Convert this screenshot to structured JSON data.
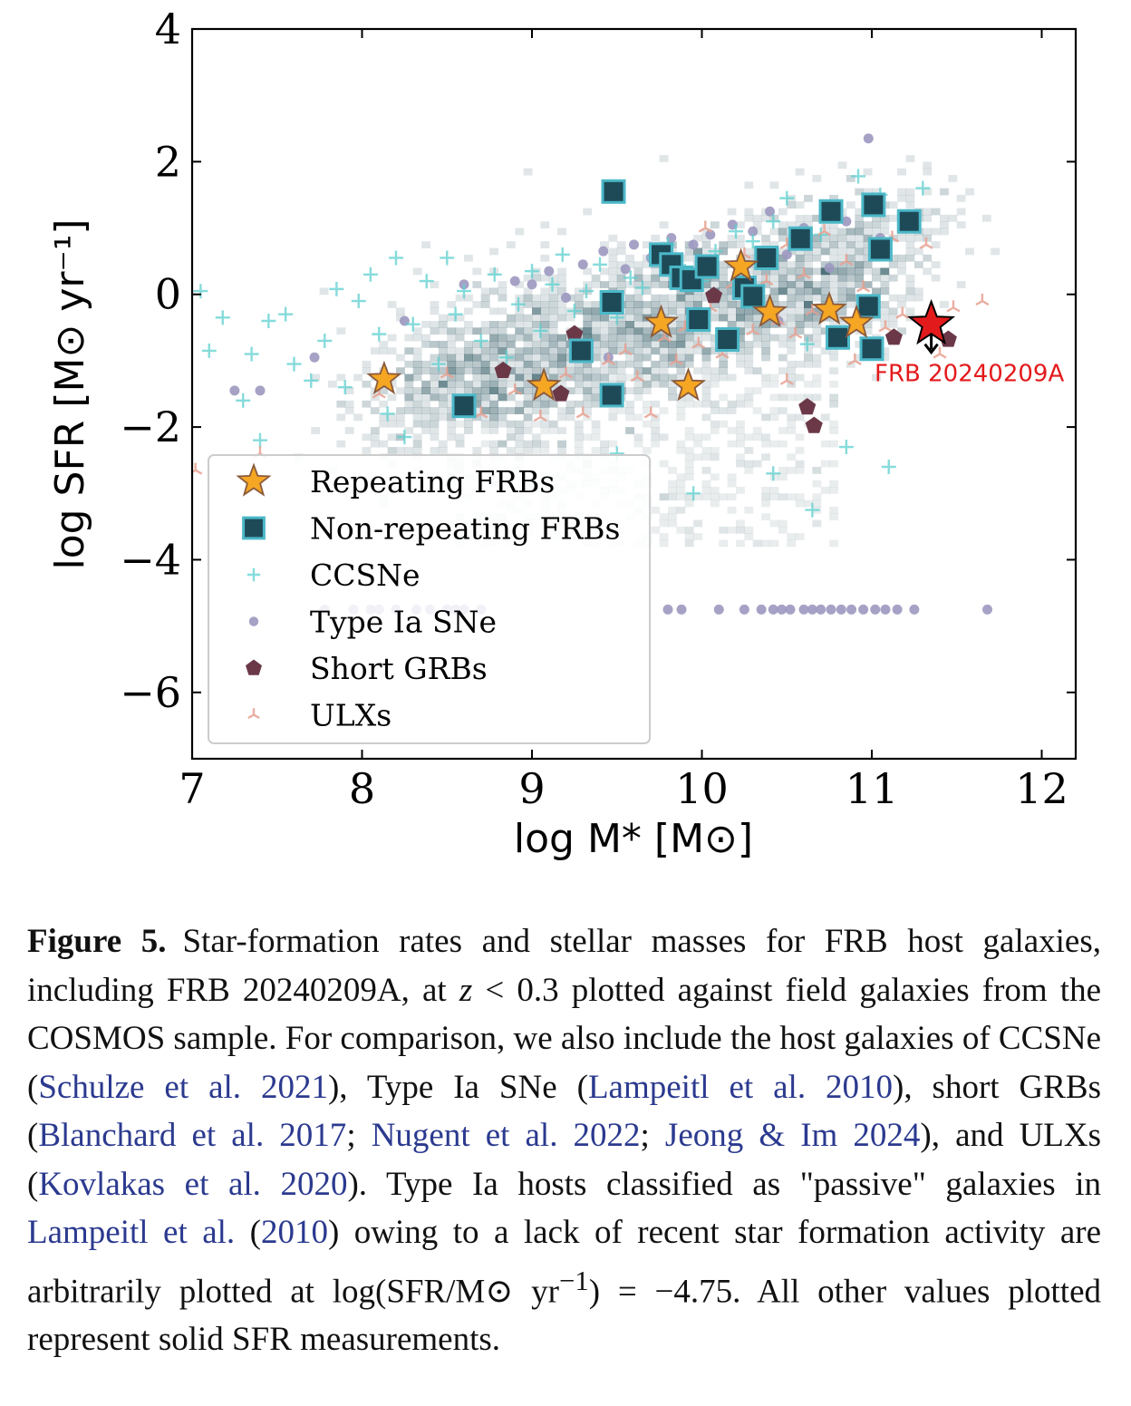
{
  "chart_data": {
    "type": "scatter",
    "xlabel": "log M* [M⊙]",
    "ylabel": "log SFR [M⊙ yr⁻¹]",
    "xlim": [
      7,
      12.2
    ],
    "ylim": [
      -7,
      4
    ],
    "xticks": [
      7,
      8,
      9,
      10,
      11,
      12
    ],
    "yticks": [
      4,
      2,
      0,
      -2,
      -4,
      -6
    ],
    "xtick_labels": [
      "7",
      "8",
      "9",
      "10",
      "11",
      "12"
    ],
    "ytick_labels": [
      "4",
      "2",
      "0",
      "−2",
      "−4",
      "−6"
    ],
    "legend_placement": "lower-left",
    "annotation": {
      "text": "FRB 20240209A",
      "x": 11.35,
      "y": -0.45,
      "upper_limit": true,
      "color": "#e31a1c"
    },
    "series": [
      {
        "name": "Repeating FRBs",
        "marker": "star",
        "color": "#f5a623",
        "points": [
          [
            8.13,
            -1.28
          ],
          [
            9.07,
            -1.38
          ],
          [
            9.76,
            -0.43
          ],
          [
            9.92,
            -1.38
          ],
          [
            10.23,
            0.42
          ],
          [
            10.4,
            -0.27
          ],
          [
            10.75,
            -0.23
          ],
          [
            10.91,
            -0.43
          ]
        ]
      },
      {
        "name": "Non-repeating FRBs",
        "marker": "square",
        "color": "#1e4a57",
        "edge": "#4bb8c8",
        "points": [
          [
            8.6,
            -1.68
          ],
          [
            9.29,
            -0.85
          ],
          [
            9.47,
            -0.12
          ],
          [
            9.47,
            -1.52
          ],
          [
            9.48,
            1.55
          ],
          [
            9.76,
            0.6
          ],
          [
            9.82,
            0.45
          ],
          [
            9.88,
            0.25
          ],
          [
            9.94,
            0.22
          ],
          [
            9.98,
            -0.38
          ],
          [
            10.03,
            0.42
          ],
          [
            10.15,
            -0.68
          ],
          [
            10.25,
            0.1
          ],
          [
            10.3,
            -0.03
          ],
          [
            10.38,
            0.55
          ],
          [
            10.58,
            0.84
          ],
          [
            10.76,
            1.25
          ],
          [
            10.8,
            -0.65
          ],
          [
            10.98,
            -0.18
          ],
          [
            11.0,
            -0.82
          ],
          [
            11.01,
            1.35
          ],
          [
            11.05,
            0.68
          ],
          [
            11.22,
            1.1
          ]
        ]
      },
      {
        "name": "CCSNe",
        "marker": "plus",
        "color": "#5ecfcf",
        "points": [
          [
            7.05,
            0.05
          ],
          [
            7.1,
            -0.85
          ],
          [
            7.18,
            -0.35
          ],
          [
            7.3,
            -1.6
          ],
          [
            7.35,
            -0.9
          ],
          [
            7.45,
            -0.4
          ],
          [
            7.55,
            -0.3
          ],
          [
            7.6,
            -1.05
          ],
          [
            7.7,
            -1.3
          ],
          [
            7.78,
            -0.7
          ],
          [
            7.85,
            0.08
          ],
          [
            7.9,
            -1.4
          ],
          [
            7.98,
            -0.1
          ],
          [
            8.05,
            0.3
          ],
          [
            8.1,
            -0.6
          ],
          [
            8.15,
            -1.8
          ],
          [
            8.2,
            0.55
          ],
          [
            8.3,
            -0.45
          ],
          [
            8.38,
            0.2
          ],
          [
            8.45,
            -1.05
          ],
          [
            8.5,
            0.55
          ],
          [
            8.55,
            -0.3
          ],
          [
            8.6,
            0.05
          ],
          [
            8.7,
            -0.7
          ],
          [
            8.78,
            0.3
          ],
          [
            8.85,
            -0.95
          ],
          [
            8.92,
            -0.15
          ],
          [
            9.0,
            0.35
          ],
          [
            9.05,
            -0.55
          ],
          [
            9.12,
            0.15
          ],
          [
            9.18,
            0.6
          ],
          [
            9.25,
            -0.25
          ],
          [
            9.32,
            0.05
          ],
          [
            9.4,
            0.45
          ],
          [
            9.5,
            -0.35
          ],
          [
            9.58,
            0.25
          ],
          [
            9.65,
            0.1
          ],
          [
            9.72,
            0.55
          ],
          [
            9.8,
            0.75
          ],
          [
            9.9,
            0.35
          ],
          [
            10.0,
            0.2
          ],
          [
            10.08,
            0.65
          ],
          [
            10.2,
            0.95
          ],
          [
            10.3,
            0.8
          ],
          [
            10.42,
            1.1
          ],
          [
            10.5,
            1.45
          ],
          [
            10.62,
            -0.75
          ],
          [
            10.7,
            0.9
          ],
          [
            10.85,
            -2.3
          ],
          [
            10.92,
            1.78
          ],
          [
            11.05,
            1.5
          ],
          [
            11.1,
            -2.6
          ],
          [
            11.3,
            1.6
          ],
          [
            10.42,
            -2.7
          ],
          [
            10.65,
            -3.25
          ],
          [
            9.95,
            -3.0
          ],
          [
            9.5,
            -2.4
          ],
          [
            8.25,
            -2.15
          ],
          [
            7.4,
            -2.2
          ]
        ]
      },
      {
        "name": "Type Ia SNe",
        "marker": "circle",
        "color": "#9c98c0",
        "points": [
          [
            7.25,
            -1.45
          ],
          [
            7.4,
            -1.45
          ],
          [
            7.72,
            -0.95
          ],
          [
            8.25,
            -0.4
          ],
          [
            8.6,
            0.15
          ],
          [
            8.9,
            0.2
          ],
          [
            9.0,
            0.15
          ],
          [
            9.1,
            0.35
          ],
          [
            9.2,
            -0.05
          ],
          [
            9.3,
            0.45
          ],
          [
            9.42,
            0.65
          ],
          [
            9.55,
            0.38
          ],
          [
            9.6,
            0.75
          ],
          [
            9.7,
            0.55
          ],
          [
            9.82,
            0.85
          ],
          [
            9.95,
            0.75
          ],
          [
            10.05,
            0.9
          ],
          [
            10.18,
            1.05
          ],
          [
            10.3,
            0.95
          ],
          [
            10.4,
            1.25
          ],
          [
            10.5,
            0.6
          ],
          [
            10.6,
            1.0
          ],
          [
            10.75,
            0.4
          ],
          [
            10.85,
            1.1
          ],
          [
            10.98,
            2.35
          ],
          [
            11.05,
            0.85
          ],
          [
            11.2,
            1.05
          ],
          [
            9.45,
            -0.95
          ],
          [
            10.45,
            -0.4
          ],
          [
            7.78,
            -4.75
          ],
          [
            7.95,
            -4.75
          ],
          [
            8.05,
            -4.75
          ],
          [
            8.1,
            -4.75
          ],
          [
            8.2,
            -4.75
          ],
          [
            8.32,
            -4.75
          ],
          [
            8.4,
            -4.75
          ],
          [
            8.5,
            -4.75
          ],
          [
            8.55,
            -4.75
          ],
          [
            8.6,
            -4.75
          ],
          [
            8.7,
            -4.75
          ],
          [
            9.8,
            -4.75
          ],
          [
            9.88,
            -4.75
          ],
          [
            10.1,
            -4.75
          ],
          [
            10.25,
            -4.75
          ],
          [
            10.35,
            -4.75
          ],
          [
            10.42,
            -4.75
          ],
          [
            10.47,
            -4.75
          ],
          [
            10.52,
            -4.75
          ],
          [
            10.6,
            -4.75
          ],
          [
            10.65,
            -4.75
          ],
          [
            10.7,
            -4.75
          ],
          [
            10.76,
            -4.75
          ],
          [
            10.82,
            -4.75
          ],
          [
            10.88,
            -4.75
          ],
          [
            10.95,
            -4.75
          ],
          [
            11.02,
            -4.75
          ],
          [
            11.08,
            -4.75
          ],
          [
            11.15,
            -4.75
          ],
          [
            11.25,
            -4.75
          ],
          [
            11.68,
            -4.75
          ]
        ]
      },
      {
        "name": "Short GRBs",
        "marker": "pentagon",
        "color": "#6b3848",
        "points": [
          [
            8.83,
            -1.15
          ],
          [
            9.17,
            -1.5
          ],
          [
            10.07,
            -0.02
          ],
          [
            10.62,
            -1.7
          ],
          [
            10.66,
            -1.98
          ],
          [
            11.13,
            -0.65
          ],
          [
            11.45,
            -0.68
          ],
          [
            9.25,
            -0.6
          ]
        ]
      },
      {
        "name": "ULXs",
        "marker": "tri",
        "color": "#e8a090",
        "points": [
          [
            7.02,
            -2.65
          ],
          [
            7.4,
            -2.4
          ],
          [
            8.1,
            -1.5
          ],
          [
            8.5,
            -1.2
          ],
          [
            8.7,
            -1.8
          ],
          [
            8.9,
            -1.45
          ],
          [
            9.05,
            -1.85
          ],
          [
            9.2,
            -1.2
          ],
          [
            9.3,
            -1.8
          ],
          [
            9.45,
            -1.0
          ],
          [
            9.55,
            -0.85
          ],
          [
            9.62,
            -1.25
          ],
          [
            9.7,
            -1.8
          ],
          [
            9.78,
            -0.65
          ],
          [
            9.85,
            -1.0
          ],
          [
            9.9,
            -0.5
          ],
          [
            9.98,
            -0.75
          ],
          [
            10.05,
            -0.2
          ],
          [
            10.12,
            -0.9
          ],
          [
            10.18,
            0.15
          ],
          [
            10.25,
            0.6
          ],
          [
            10.3,
            -0.55
          ],
          [
            10.38,
            0.2
          ],
          [
            10.45,
            -0.4
          ],
          [
            10.5,
            0.75
          ],
          [
            10.55,
            -0.6
          ],
          [
            10.6,
            0.3
          ],
          [
            10.65,
            -0.25
          ],
          [
            10.72,
            0.95
          ],
          [
            10.78,
            -0.6
          ],
          [
            10.85,
            0.5
          ],
          [
            10.9,
            -1.0
          ],
          [
            10.95,
            0.1
          ],
          [
            11.02,
            1.3
          ],
          [
            11.08,
            -0.5
          ],
          [
            11.12,
            0.85
          ],
          [
            11.18,
            -0.3
          ],
          [
            11.25,
            1.0
          ],
          [
            11.32,
            0.75
          ],
          [
            11.4,
            -0.9
          ],
          [
            11.48,
            -0.2
          ],
          [
            11.65,
            -0.1
          ],
          [
            10.02,
            1.0
          ],
          [
            10.5,
            -1.3
          ]
        ]
      }
    ]
  },
  "legend": {
    "items": [
      {
        "label": "Repeating FRBs",
        "marker": "star"
      },
      {
        "label": "Non-repeating FRBs",
        "marker": "square"
      },
      {
        "label": "CCSNe",
        "marker": "plus"
      },
      {
        "label": "Type Ia SNe",
        "marker": "circle"
      },
      {
        "label": "Short GRBs",
        "marker": "pentagon"
      },
      {
        "label": "ULXs",
        "marker": "tri"
      }
    ]
  },
  "caption": {
    "label": "Figure 5.",
    "t1": "Star-formation rates and stellar masses for FRB host galaxies, including FRB 20240209A, at ",
    "z": "z",
    "t2": " < 0.3 plotted against field galaxies from the COSMOS sample. For comparison, we also include the host galaxies of CCSNe (",
    "c1": "Schulze et al. 2021",
    "t3": "), Type Ia SNe (",
    "c2": "Lampeitl et al. 2010",
    "t4": "), short GRBs (",
    "c3": "Blanchard et al. 2017",
    "t5": "; ",
    "c4": "Nugent et al. 2022",
    "t6": "; ",
    "c5": "Jeong & Im 2024",
    "t7": "), and ULXs (",
    "c6": "Kovlakas et al. 2020",
    "t8": "). Type Ia hosts classified as \"passive\" galaxies in ",
    "c7": "Lampeitl et al.",
    "t9": " (",
    "c8": "2010",
    "t10": ") owing to a lack of recent star formation activity are arbitrarily plotted at log(SFR/M⊙ yr",
    "sup": "−1",
    "t11": ") = −4.75.  All other values plotted represent solid SFR measurements."
  }
}
